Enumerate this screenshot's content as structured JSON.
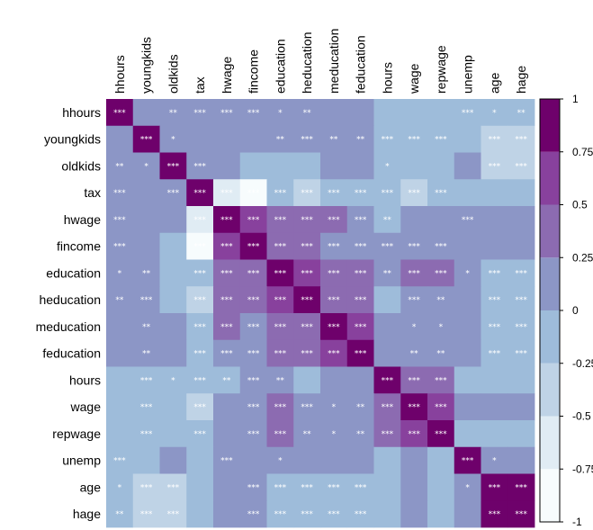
{
  "chart_data": {
    "type": "heatmap",
    "variables": [
      "hhours",
      "youngkids",
      "oldkids",
      "tax",
      "hwage",
      "fincome",
      "education",
      "heducation",
      "meducation",
      "feducation",
      "hours",
      "wage",
      "repwage",
      "unemp",
      "age",
      "hage"
    ],
    "matrix": [
      [
        1,
        0.05,
        0.12,
        0.02,
        0.05,
        0.07,
        0.12,
        0.12,
        0.08,
        0.08,
        -0.06,
        -0.11,
        -0.06,
        -0.14,
        -0.07,
        -0.04
      ],
      [
        0.05,
        1,
        0.08,
        0.02,
        0.05,
        0.02,
        0.11,
        0.11,
        0.14,
        0.13,
        -0.22,
        -0.13,
        -0.19,
        -0.11,
        -0.43,
        -0.42
      ],
      [
        0.12,
        0.08,
        1,
        0.18,
        0.03,
        -0.04,
        -0.08,
        -0.06,
        0.08,
        0.06,
        -0.09,
        -0.09,
        -0.04,
        0.11,
        -0.38,
        -0.36
      ],
      [
        0.02,
        0.02,
        0.18,
        1,
        -0.67,
        -0.92,
        -0.19,
        -0.29,
        -0.12,
        -0.1,
        -0.06,
        -0.42,
        -0.14,
        -0.08,
        -0.03,
        -0.02
      ],
      [
        0.05,
        0.05,
        0.03,
        -0.67,
        1,
        0.67,
        0.3,
        0.4,
        0.27,
        0.22,
        -0.05,
        0.1,
        0.06,
        0.09,
        0.08,
        0.06
      ],
      [
        0.07,
        0.02,
        -0.04,
        -0.92,
        0.67,
        1,
        0.36,
        0.36,
        0.2,
        0.18,
        0.15,
        0.2,
        0.18,
        0.05,
        0.1,
        0.1
      ],
      [
        0.12,
        0.11,
        -0.08,
        -0.19,
        0.3,
        0.36,
        1,
        0.61,
        0.36,
        0.33,
        0.11,
        0.34,
        0.29,
        0.05,
        -0.12,
        -0.12
      ],
      [
        0.12,
        0.11,
        -0.06,
        -0.29,
        0.4,
        0.36,
        0.61,
        1,
        0.33,
        0.39,
        -0.03,
        0.2,
        0.16,
        0.09,
        -0.22,
        -0.22
      ],
      [
        0.08,
        0.14,
        0.08,
        -0.12,
        0.27,
        0.2,
        0.36,
        0.33,
        1,
        0.57,
        0.04,
        0.04,
        0.04,
        0.05,
        -0.22,
        -0.22
      ],
      [
        0.08,
        0.13,
        0.06,
        -0.1,
        0.22,
        0.18,
        0.33,
        0.39,
        0.57,
        1,
        0.06,
        0.07,
        0.08,
        0.06,
        -0.22,
        -0.22
      ],
      [
        -0.06,
        -0.22,
        -0.09,
        -0.06,
        -0.05,
        0.15,
        0.11,
        -0.03,
        0.04,
        0.06,
        1,
        0.42,
        0.41,
        -0.05,
        -0.03,
        -0.03
      ],
      [
        -0.11,
        -0.13,
        -0.09,
        -0.42,
        0.1,
        0.2,
        0.34,
        0.2,
        0.04,
        0.07,
        0.42,
        1,
        0.63,
        0.01,
        0.03,
        0.03
      ],
      [
        -0.06,
        -0.19,
        -0.04,
        -0.14,
        0.06,
        0.18,
        0.29,
        0.16,
        0.04,
        0.08,
        0.41,
        0.63,
        1,
        -0.07,
        -0.05,
        -0.05
      ],
      [
        -0.14,
        -0.11,
        0.11,
        -0.08,
        0.09,
        0.05,
        0.05,
        0.09,
        0.05,
        0.06,
        -0.05,
        0.01,
        -0.07,
        1,
        0.08,
        0.07
      ],
      [
        -0.07,
        -0.43,
        -0.38,
        -0.03,
        0.08,
        0.1,
        -0.12,
        -0.22,
        -0.22,
        -0.22,
        -0.03,
        0.03,
        -0.05,
        0.08,
        1,
        0.89
      ],
      [
        -0.04,
        -0.42,
        -0.36,
        -0.02,
        0.06,
        0.1,
        -0.12,
        -0.22,
        -0.22,
        -0.22,
        -0.03,
        0.03,
        -0.05,
        0.07,
        0.89,
        1
      ]
    ],
    "significance": [
      [
        "***",
        "",
        "**",
        "***",
        "***",
        "***",
        "*",
        "**",
        "",
        "",
        "",
        "",
        "",
        "***",
        "*",
        "**"
      ],
      [
        "",
        "***",
        "*",
        "",
        "",
        "",
        "**",
        "***",
        "**",
        "**",
        "***",
        "***",
        "***",
        "",
        "***",
        "***"
      ],
      [
        "**",
        "*",
        "***",
        "***",
        "",
        "",
        "",
        "",
        "",
        "",
        "*",
        "",
        "",
        "",
        "***",
        "***"
      ],
      [
        "***",
        "",
        "***",
        "***",
        "***",
        "***",
        "***",
        "***",
        "***",
        "***",
        "***",
        "***",
        "***",
        "",
        "",
        ""
      ],
      [
        "***",
        "",
        "",
        "***",
        "***",
        "***",
        "***",
        "***",
        "***",
        "***",
        "**",
        "",
        "",
        "***",
        "",
        ""
      ],
      [
        "***",
        "",
        "",
        "***",
        "***",
        "***",
        "***",
        "***",
        "***",
        "***",
        "***",
        "***",
        "***",
        "",
        "",
        ""
      ],
      [
        "*",
        "**",
        "",
        "***",
        "***",
        "***",
        "***",
        "***",
        "***",
        "***",
        "**",
        "***",
        "***",
        "*",
        "***",
        "***"
      ],
      [
        "**",
        "***",
        "",
        "***",
        "***",
        "***",
        "***",
        "***",
        "***",
        "***",
        "",
        "***",
        "**",
        "",
        "***",
        "***"
      ],
      [
        "",
        "**",
        "",
        "***",
        "***",
        "***",
        "***",
        "***",
        "***",
        "***",
        "",
        "*",
        "*",
        "",
        "***",
        "***"
      ],
      [
        "",
        "**",
        "",
        "***",
        "***",
        "***",
        "***",
        "***",
        "***",
        "***",
        "",
        "**",
        "**",
        "",
        "***",
        "***"
      ],
      [
        "",
        "***",
        "*",
        "***",
        "**",
        "***",
        "**",
        "",
        "",
        "",
        "***",
        "***",
        "***",
        "",
        "",
        ""
      ],
      [
        "",
        "***",
        "",
        "***",
        "",
        "***",
        "***",
        "***",
        "*",
        "**",
        "***",
        "***",
        "***",
        "",
        "",
        ""
      ],
      [
        "",
        "***",
        "",
        "***",
        "",
        "***",
        "***",
        "**",
        "*",
        "**",
        "***",
        "***",
        "***",
        "",
        "",
        ""
      ],
      [
        "***",
        "",
        "",
        "",
        "***",
        "",
        "*",
        "",
        "",
        "",
        "",
        "",
        "",
        "***",
        "*",
        ""
      ],
      [
        "*",
        "***",
        "***",
        "",
        "",
        "***",
        "***",
        "***",
        "***",
        "***",
        "",
        "",
        "",
        "*",
        "***",
        "***"
      ],
      [
        "**",
        "***",
        "***",
        "",
        "",
        "***",
        "***",
        "***",
        "***",
        "***",
        "",
        "",
        "",
        "",
        "***",
        "***"
      ]
    ],
    "color_scale": {
      "range": [
        -1,
        1
      ],
      "ticks": [
        1,
        0.75,
        0.5,
        0.25,
        0,
        -0.25,
        -0.5,
        -0.75,
        -1
      ],
      "tick_labels": [
        "1",
        "0.75",
        "0.5",
        "0.25",
        "0",
        "-0.25",
        "-0.5",
        "-0.75",
        "-1"
      ],
      "bins": [
        {
          "from": -1,
          "to": -0.75,
          "color": "#f7fcfd"
        },
        {
          "from": -0.75,
          "to": -0.5,
          "color": "#e0ecf4"
        },
        {
          "from": -0.5,
          "to": -0.25,
          "color": "#bfd3e6"
        },
        {
          "from": -0.25,
          "to": 0,
          "color": "#9ebcda"
        },
        {
          "from": 0,
          "to": 0.25,
          "color": "#8c96c6"
        },
        {
          "from": 0.25,
          "to": 0.5,
          "color": "#8c6bb1"
        },
        {
          "from": 0.5,
          "to": 0.75,
          "color": "#88419d"
        },
        {
          "from": 0.75,
          "to": 1,
          "color": "#6e016b"
        }
      ]
    },
    "legend_position": "right",
    "title": "",
    "xlabel": "",
    "ylabel": ""
  }
}
